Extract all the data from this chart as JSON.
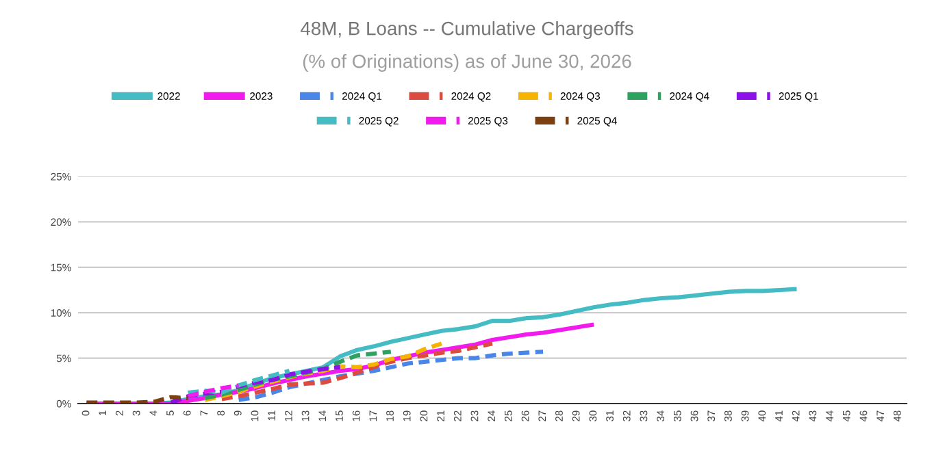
{
  "chart_data": {
    "type": "line",
    "title": "48M, B Loans -- Cumulative Chargeoffs",
    "subtitle": "(% of Originations) as of June 30, 2026",
    "categories": [
      "0",
      "1",
      "2",
      "3",
      "4",
      "5",
      "6",
      "7",
      "8",
      "9",
      "10",
      "11",
      "12",
      "13",
      "14",
      "15",
      "16",
      "17",
      "18",
      "19",
      "20",
      "21",
      "22",
      "23",
      "24",
      "25",
      "26",
      "27",
      "28",
      "29",
      "30",
      "31",
      "32",
      "33",
      "34",
      "35",
      "36",
      "37",
      "38",
      "39",
      "40",
      "41",
      "42",
      "43",
      "44",
      "45",
      "46",
      "47",
      "48"
    ],
    "ylim": [
      0,
      25
    ],
    "yticks": [
      {
        "value": 0,
        "label": "0%"
      },
      {
        "value": 5,
        "label": "5%"
      },
      {
        "value": 10,
        "label": "10%"
      },
      {
        "value": 15,
        "label": "15%"
      },
      {
        "value": 20,
        "label": "20%"
      },
      {
        "value": 25,
        "label": "25%"
      }
    ],
    "grid": "y",
    "legend": "top",
    "marker": "none",
    "series": [
      {
        "name": "2022",
        "color": "#45bcc4",
        "line_style": "solid",
        "values": [
          null,
          null,
          null,
          null,
          0,
          0.1,
          0.5,
          0.8,
          1.0,
          1.5,
          2.2,
          2.8,
          3.2,
          3.6,
          4.0,
          5.2,
          5.9,
          6.3,
          6.8,
          7.2,
          7.6,
          8.0,
          8.2,
          8.5,
          9.1,
          9.1,
          9.4,
          9.5,
          9.8,
          10.2,
          10.6,
          10.9,
          11.1,
          11.4,
          11.6,
          11.7,
          11.9,
          12.1,
          12.3,
          12.4,
          12.4,
          12.5,
          12.6,
          null,
          null,
          null,
          null,
          null,
          null
        ]
      },
      {
        "name": "2023",
        "color": "#f21bee",
        "line_style": "solid",
        "values": [
          0,
          0,
          0,
          0,
          0,
          0,
          0.3,
          0.6,
          1.0,
          1.3,
          1.7,
          2.2,
          2.6,
          3.0,
          3.3,
          3.6,
          3.8,
          4.2,
          4.8,
          5.2,
          5.6,
          5.9,
          6.2,
          6.5,
          7.0,
          7.3,
          7.6,
          7.8,
          8.1,
          8.4,
          8.7,
          null,
          null,
          null,
          null,
          null,
          null,
          null,
          null,
          null,
          null,
          null,
          null,
          null,
          null,
          null,
          null,
          null,
          null
        ]
      },
      {
        "name": "2024 Q1",
        "color": "#4a86e8",
        "line_style": "dashed",
        "values": [
          null,
          null,
          null,
          null,
          null,
          null,
          null,
          null,
          null,
          0.4,
          0.7,
          1.2,
          1.8,
          2.2,
          2.6,
          3.0,
          3.3,
          3.6,
          4.0,
          4.4,
          4.6,
          4.8,
          5.0,
          5.0,
          5.3,
          5.5,
          5.6,
          5.7,
          null,
          null,
          null,
          null,
          null,
          null,
          null,
          null,
          null,
          null,
          null,
          null,
          null,
          null,
          null,
          null,
          null,
          null,
          null,
          null,
          null
        ]
      },
      {
        "name": "2024 Q2",
        "color": "#dc4b3f",
        "line_style": "dashed",
        "values": [
          null,
          null,
          null,
          null,
          null,
          null,
          null,
          null,
          0.5,
          0.8,
          1.2,
          1.6,
          2.1,
          2.2,
          2.3,
          2.8,
          3.4,
          4.0,
          4.6,
          5.0,
          5.3,
          5.6,
          5.8,
          6.2,
          6.6,
          null,
          null,
          null,
          null,
          null,
          null,
          null,
          null,
          null,
          null,
          null,
          null,
          null,
          null,
          null,
          null,
          null,
          null,
          null,
          null,
          null,
          null,
          null,
          null
        ]
      },
      {
        "name": "2024 Q3",
        "color": "#f4b400",
        "line_style": "dashed",
        "values": [
          null,
          null,
          null,
          null,
          null,
          null,
          null,
          0.4,
          0.8,
          1.3,
          1.9,
          2.4,
          2.9,
          3.3,
          3.6,
          4.1,
          4.0,
          4.3,
          4.9,
          5.2,
          6.0,
          6.6,
          null,
          null,
          null,
          null,
          null,
          null,
          null,
          null,
          null,
          null,
          null,
          null,
          null,
          null,
          null,
          null,
          null,
          null,
          null,
          null,
          null,
          null,
          null,
          null,
          null,
          null,
          null
        ]
      },
      {
        "name": "2024 Q4",
        "color": "#2da160",
        "line_style": "dashed",
        "values": [
          null,
          null,
          null,
          null,
          null,
          null,
          null,
          0.6,
          1.0,
          1.5,
          2.1,
          2.6,
          3.0,
          3.4,
          3.8,
          4.6,
          5.3,
          5.5,
          5.7,
          null,
          null,
          null,
          null,
          null,
          null,
          null,
          null,
          null,
          null,
          null,
          null,
          null,
          null,
          null,
          null,
          null,
          null,
          null,
          null,
          null,
          null,
          null,
          null,
          null,
          null,
          null,
          null,
          null,
          null
        ]
      },
      {
        "name": "2025 Q1",
        "color": "#8b10ea",
        "line_style": "dashed",
        "values": [
          null,
          null,
          null,
          null,
          null,
          0.1,
          0.8,
          1.1,
          1.3,
          1.9,
          2.3,
          2.6,
          3.2,
          3.5,
          3.8,
          4.0,
          null,
          null,
          null,
          null,
          null,
          null,
          null,
          null,
          null,
          null,
          null,
          null,
          null,
          null,
          null,
          null,
          null,
          null,
          null,
          null,
          null,
          null,
          null,
          null,
          null,
          null,
          null,
          null,
          null,
          null,
          null,
          null,
          null
        ]
      },
      {
        "name": "2025 Q2",
        "color": "#45bcc4",
        "line_style": "dashed",
        "values": [
          null,
          null,
          null,
          null,
          null,
          null,
          1.2,
          1.4,
          1.2,
          2.0,
          2.6,
          3.1,
          3.6,
          null,
          null,
          null,
          null,
          null,
          null,
          null,
          null,
          null,
          null,
          null,
          null,
          null,
          null,
          null,
          null,
          null,
          null,
          null,
          null,
          null,
          null,
          null,
          null,
          null,
          null,
          null,
          null,
          null,
          null,
          null,
          null,
          null,
          null,
          null,
          null
        ]
      },
      {
        "name": "2025 Q3",
        "color": "#f21bee",
        "line_style": "dashed",
        "values": [
          null,
          null,
          null,
          null,
          null,
          null,
          0.8,
          1.3,
          1.7,
          2.0,
          null,
          null,
          null,
          null,
          null,
          null,
          null,
          null,
          null,
          null,
          null,
          null,
          null,
          null,
          null,
          null,
          null,
          null,
          null,
          null,
          null,
          null,
          null,
          null,
          null,
          null,
          null,
          null,
          null,
          null,
          null,
          null,
          null,
          null,
          null,
          null,
          null,
          null,
          null
        ]
      },
      {
        "name": "2025 Q4",
        "color": "#7b3f10",
        "line_style": "dashed",
        "values": [
          0.1,
          0.1,
          0.1,
          0.1,
          0.2,
          0.7,
          0.6,
          null,
          null,
          null,
          null,
          null,
          null,
          null,
          null,
          null,
          null,
          null,
          null,
          null,
          null,
          null,
          null,
          null,
          null,
          null,
          null,
          null,
          null,
          null,
          null,
          null,
          null,
          null,
          null,
          null,
          null,
          null,
          null,
          null,
          null,
          null,
          null,
          null,
          null,
          null,
          null,
          null,
          null
        ]
      }
    ]
  }
}
